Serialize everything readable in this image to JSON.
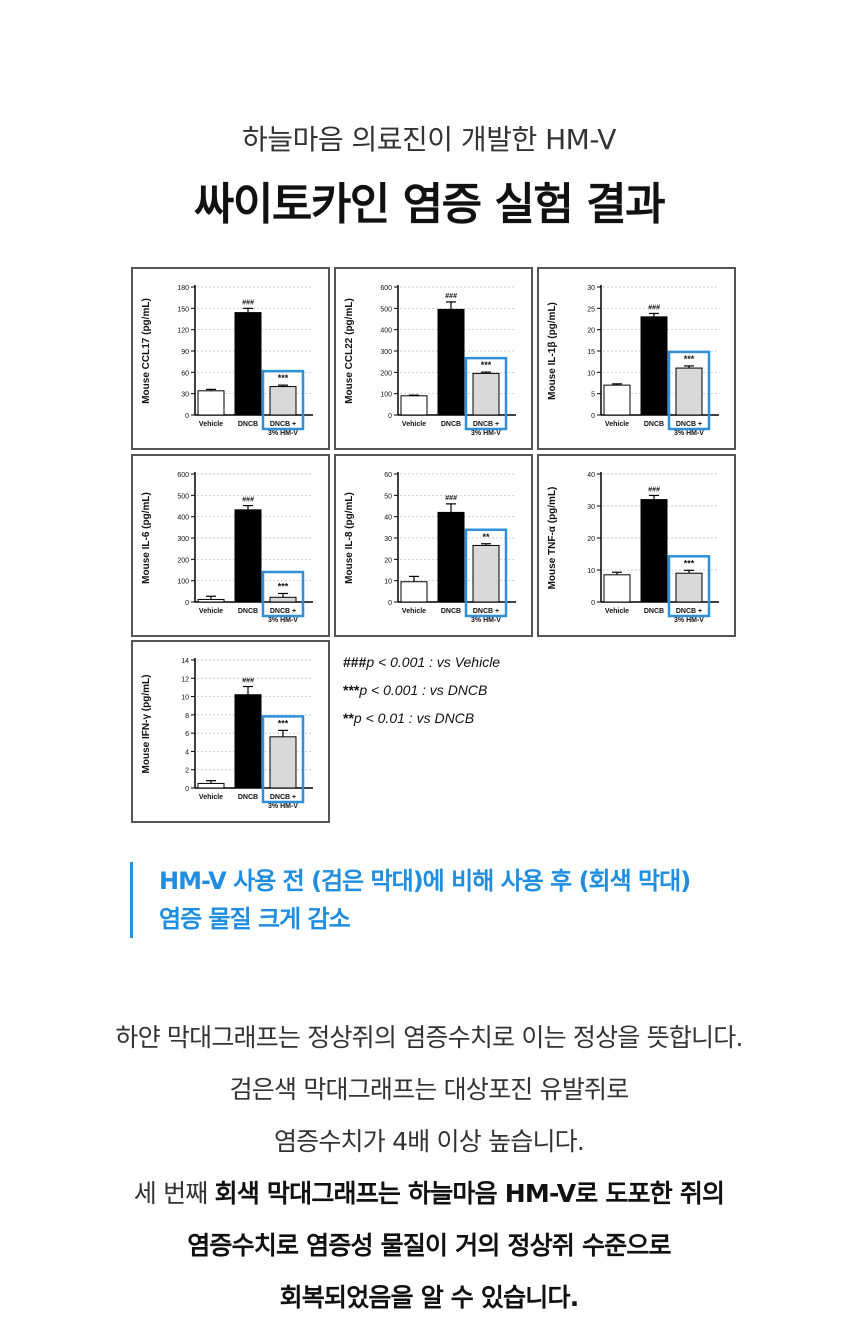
{
  "header": {
    "subtitle": "하늘마음 의료진이 개발한 HM-V",
    "title": "싸이토카인 염증 실험 결과"
  },
  "colors": {
    "vehicle": "#ffffff",
    "dncb": "#000000",
    "hmv": "#d9d9d9",
    "highlight_box": "#2f8fd8",
    "highlight_text": "#1f8ee0"
  },
  "chart_data": [
    {
      "type": "bar",
      "ylabel": "Mouse CCL17 (pg/mL)",
      "ylim": [
        0,
        180
      ],
      "yticks": [
        0,
        30,
        60,
        90,
        120,
        150,
        180
      ],
      "categories": [
        "Vehicle",
        "DNCB",
        "DNCB +\n3% HM-V"
      ],
      "values": [
        34,
        144,
        40
      ],
      "errors": [
        2,
        6,
        2
      ],
      "annotations": [
        "",
        "###",
        "***"
      ]
    },
    {
      "type": "bar",
      "ylabel": "Mouse CCL22 (pg/mL)",
      "ylim": [
        0,
        600
      ],
      "yticks": [
        0,
        100,
        200,
        300,
        400,
        500,
        600
      ],
      "categories": [
        "Vehicle",
        "DNCB",
        "DNCB +\n3% HM-V"
      ],
      "values": [
        90,
        495,
        195
      ],
      "errors": [
        3,
        35,
        6
      ],
      "annotations": [
        "",
        "###",
        "***"
      ]
    },
    {
      "type": "bar",
      "ylabel": "Mouse IL-1β (pg/mL)",
      "ylim": [
        0,
        30
      ],
      "yticks": [
        0,
        5,
        10,
        15,
        20,
        25,
        30
      ],
      "categories": [
        "Vehicle",
        "DNCB",
        "DNCB +\n3% HM-V"
      ],
      "values": [
        7,
        23,
        11
      ],
      "errors": [
        0.3,
        0.8,
        0.5
      ],
      "annotations": [
        "",
        "###",
        "***"
      ]
    },
    {
      "type": "bar",
      "ylabel": "Mouse IL-6 (pg/mL)",
      "ylim": [
        0,
        600
      ],
      "yticks": [
        0,
        100,
        200,
        300,
        400,
        500,
        600
      ],
      "categories": [
        "Vehicle",
        "DNCB",
        "DNCB +\n3% HM-V"
      ],
      "values": [
        12,
        432,
        22
      ],
      "errors": [
        15,
        20,
        18
      ],
      "annotations": [
        "",
        "###",
        "***"
      ]
    },
    {
      "type": "bar",
      "ylabel": "Mouse IL-8 (pg/mL)",
      "ylim": [
        0,
        60
      ],
      "yticks": [
        0,
        10,
        20,
        30,
        40,
        50,
        60
      ],
      "categories": [
        "Vehicle",
        "DNCB",
        "DNCB +\n3% HM-V"
      ],
      "values": [
        9.5,
        42,
        26.5
      ],
      "errors": [
        2.5,
        4,
        0.8
      ],
      "annotations": [
        "",
        "###",
        "**"
      ]
    },
    {
      "type": "bar",
      "ylabel": "Mouse TNF-α (pg/mL)",
      "ylim": [
        0,
        40
      ],
      "yticks": [
        0,
        10,
        20,
        30,
        40
      ],
      "categories": [
        "Vehicle",
        "DNCB",
        "DNCB +\n3% HM-V"
      ],
      "values": [
        8.5,
        32,
        9
      ],
      "errors": [
        0.8,
        1.3,
        0.9
      ],
      "annotations": [
        "",
        "###",
        "***"
      ]
    },
    {
      "type": "bar",
      "ylabel": "Mouse IFN-γ (pg/mL)",
      "ylim": [
        0,
        14
      ],
      "yticks": [
        0,
        2,
        4,
        6,
        8,
        10,
        12,
        14
      ],
      "categories": [
        "Vehicle",
        "DNCB",
        "DNCB +\n3% HM-V"
      ],
      "values": [
        0.5,
        10.2,
        5.6
      ],
      "errors": [
        0.3,
        0.9,
        0.7
      ],
      "annotations": [
        "",
        "###",
        "***"
      ]
    }
  ],
  "legend": [
    {
      "mark": "###",
      "text": "p < 0.001 : vs Vehicle"
    },
    {
      "mark": "***",
      "text": "p < 0.001 : vs DNCB"
    },
    {
      "mark": "**",
      "text": "p < 0.01 : vs DNCB"
    }
  ],
  "highlight": {
    "line1": "HM-V 사용 전 (검은 막대)에 비해 사용 후 (회색 막대)",
    "line2": "염증 물질 크게 감소"
  },
  "description": {
    "line1": "하얀 막대그래프는 정상쥐의 염증수치로 이는 정상을 뜻합니다.",
    "line2": "검은색 막대그래프는 대상포진 유발쥐로",
    "line3": "염증수치가 4배 이상 높습니다.",
    "line4_normal": "세 번째 ",
    "line4_bold": "회색 막대그래프는 하늘마음 HM-V로 도포한 쥐의",
    "line5": "염증수치로 염증성 물질이 거의 정상쥐 수준으로",
    "line6": "회복되었음을 알 수 있습니다."
  }
}
